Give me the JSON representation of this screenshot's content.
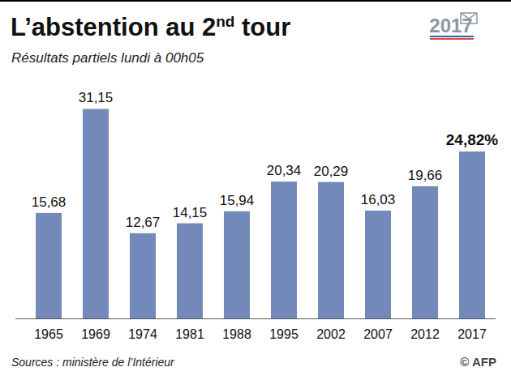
{
  "chart_data": {
    "type": "bar",
    "title": "L’abstention au 2nd tour",
    "subtitle": "Résultats partiels lundi à 00h05",
    "logo": "2017",
    "source": "Sources : ministère de l’Intérieur",
    "credit": "© AFP",
    "categories": [
      "1965",
      "1969",
      "1974",
      "1981",
      "1988",
      "1995",
      "2002",
      "2007",
      "2012",
      "2017"
    ],
    "values": [
      15.68,
      31.15,
      12.67,
      14.15,
      15.94,
      20.34,
      20.29,
      16.03,
      19.66,
      24.82
    ],
    "value_labels": [
      "15,68",
      "31,15",
      "12,67",
      "14,15",
      "15,94",
      "20,34",
      "20,29",
      "16,03",
      "19,66",
      "24,82%"
    ],
    "color": "#7389b9",
    "ylim": [
      0,
      36
    ],
    "data_labels": true,
    "tick_labels": "x",
    "grid": false
  }
}
